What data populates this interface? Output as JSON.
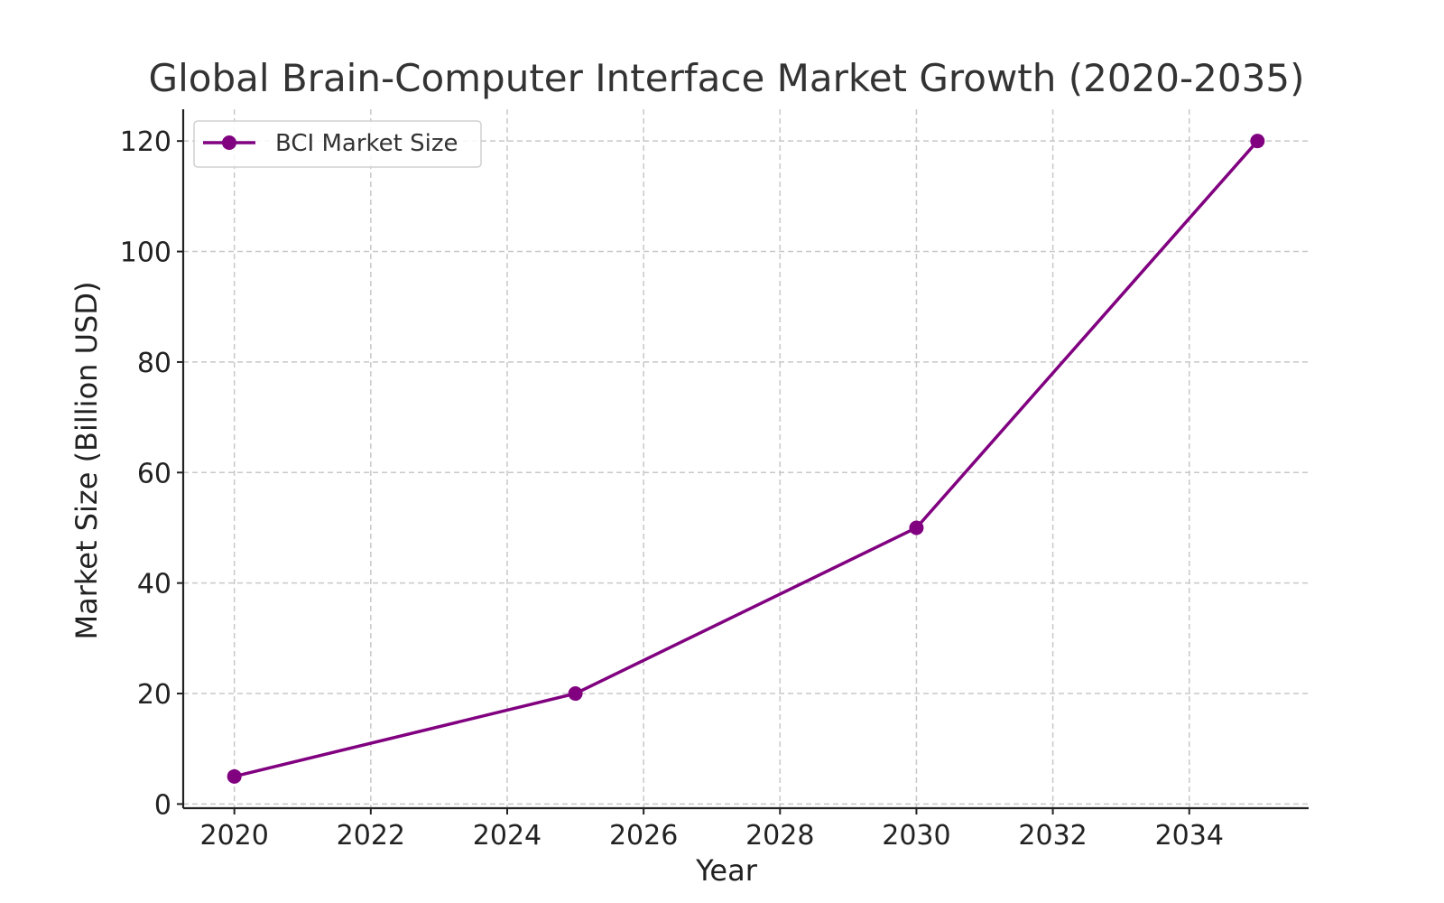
{
  "chart_data": {
    "type": "line",
    "title": "Global Brain-Computer Interface Market Growth (2020-2035)",
    "xlabel": "Year",
    "ylabel": "Market Size (Billion USD)",
    "x": [
      2020,
      2025,
      2030,
      2035
    ],
    "series": [
      {
        "name": "BCI Market Size",
        "values": [
          5,
          20,
          50,
          120
        ],
        "color": "#800080",
        "marker": "circle"
      }
    ],
    "x_ticks": [
      "2020",
      "2022",
      "2024",
      "2026",
      "2028",
      "2030",
      "2032",
      "2034"
    ],
    "y_ticks": [
      "0",
      "20",
      "40",
      "60",
      "80",
      "100",
      "120"
    ],
    "xlim": [
      2019.25,
      2035.75
    ],
    "ylim": [
      -0.75,
      125.75
    ],
    "grid": true,
    "legend_position": "top-left"
  }
}
